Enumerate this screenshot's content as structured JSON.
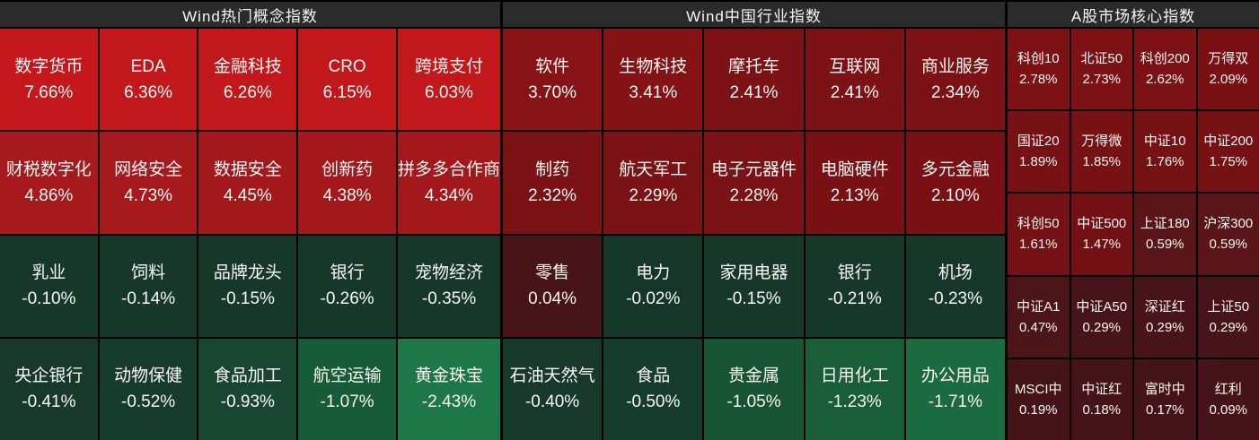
{
  "colors": {
    "background": "#000000",
    "header_background": "#2b2b2b",
    "header_text": "#f5f5f5",
    "cell_text": "#faf6f5",
    "gain_bright": "#c3181c",
    "gain_dark": "#7c1215",
    "flat_maroon": "#471518",
    "loss_dark": "#163829",
    "loss_bright": "#1e7746"
  },
  "chart_data": {
    "type": "heatmap",
    "unit": "%",
    "color_encoding": "red = gain, dark maroon = near zero, green = loss; brightness scales with magnitude",
    "sections": [
      {
        "title": "Wind热门概念指数",
        "columns": 5,
        "rows": 4,
        "cells": [
          {
            "label": "数字货币",
            "value": "7.66%",
            "change": 7.66,
            "color": "#c4181d"
          },
          {
            "label": "EDA",
            "value": "6.36%",
            "change": 6.36,
            "color": "#c2181c"
          },
          {
            "label": "金融科技",
            "value": "6.26%",
            "change": 6.26,
            "color": "#c2181c"
          },
          {
            "label": "CRO",
            "value": "6.15%",
            "change": 6.15,
            "color": "#c2181c"
          },
          {
            "label": "跨境支付",
            "value": "6.03%",
            "change": 6.03,
            "color": "#c2181c"
          },
          {
            "label": "财税数字化",
            "value": "4.86%",
            "change": 4.86,
            "color": "#a6191c"
          },
          {
            "label": "网络安全",
            "value": "4.73%",
            "change": 4.73,
            "color": "#a6191c"
          },
          {
            "label": "数据安全",
            "value": "4.45%",
            "change": 4.45,
            "color": "#a3181b"
          },
          {
            "label": "创新药",
            "value": "4.38%",
            "change": 4.38,
            "color": "#a3181b"
          },
          {
            "label": "拼多多合作商",
            "value": "4.34%",
            "change": 4.34,
            "color": "#a3181b"
          },
          {
            "label": "乳业",
            "value": "-0.10%",
            "change": -0.1,
            "color": "#163829"
          },
          {
            "label": "饲料",
            "value": "-0.14%",
            "change": -0.14,
            "color": "#163829"
          },
          {
            "label": "品牌龙头",
            "value": "-0.15%",
            "change": -0.15,
            "color": "#163829"
          },
          {
            "label": "银行",
            "value": "-0.26%",
            "change": -0.26,
            "color": "#163829"
          },
          {
            "label": "宠物经济",
            "value": "-0.35%",
            "change": -0.35,
            "color": "#163829"
          },
          {
            "label": "央企银行",
            "value": "-0.41%",
            "change": -0.41,
            "color": "#16392a"
          },
          {
            "label": "动物保健",
            "value": "-0.52%",
            "change": -0.52,
            "color": "#163d2c"
          },
          {
            "label": "食品加工",
            "value": "-0.93%",
            "change": -0.93,
            "color": "#174731"
          },
          {
            "label": "航空运输",
            "value": "-1.07%",
            "change": -1.07,
            "color": "#175c38"
          },
          {
            "label": "黄金珠宝",
            "value": "-2.43%",
            "change": -2.43,
            "color": "#1e7746"
          }
        ]
      },
      {
        "title": "Wind中国行业指数",
        "columns": 5,
        "rows": 4,
        "cells": [
          {
            "label": "软件",
            "value": "3.70%",
            "change": 3.7,
            "color": "#871316"
          },
          {
            "label": "生物科技",
            "value": "3.41%",
            "change": 3.41,
            "color": "#851316"
          },
          {
            "label": "摩托车",
            "value": "2.41%",
            "change": 2.41,
            "color": "#7c1215"
          },
          {
            "label": "互联网",
            "value": "2.41%",
            "change": 2.41,
            "color": "#7c1215"
          },
          {
            "label": "商业服务",
            "value": "2.34%",
            "change": 2.34,
            "color": "#7c1215"
          },
          {
            "label": "制药",
            "value": "2.32%",
            "change": 2.32,
            "color": "#7b1215"
          },
          {
            "label": "航天军工",
            "value": "2.29%",
            "change": 2.29,
            "color": "#7b1215"
          },
          {
            "label": "电子元器件",
            "value": "2.28%",
            "change": 2.28,
            "color": "#7b1215"
          },
          {
            "label": "电脑硬件",
            "value": "2.13%",
            "change": 2.13,
            "color": "#791114"
          },
          {
            "label": "多元金融",
            "value": "2.10%",
            "change": 2.1,
            "color": "#791114"
          },
          {
            "label": "零售",
            "value": "0.04%",
            "change": 0.04,
            "color": "#471518"
          },
          {
            "label": "电力",
            "value": "-0.02%",
            "change": -0.02,
            "color": "#15372a"
          },
          {
            "label": "家用电器",
            "value": "-0.15%",
            "change": -0.15,
            "color": "#163829"
          },
          {
            "label": "银行",
            "value": "-0.21%",
            "change": -0.21,
            "color": "#163829"
          },
          {
            "label": "机场",
            "value": "-0.23%",
            "change": -0.23,
            "color": "#163829"
          },
          {
            "label": "石油天然气",
            "value": "-0.40%",
            "change": -0.4,
            "color": "#16392a"
          },
          {
            "label": "食品",
            "value": "-0.50%",
            "change": -0.5,
            "color": "#163d2c"
          },
          {
            "label": "贵金属",
            "value": "-1.05%",
            "change": -1.05,
            "color": "#165433"
          },
          {
            "label": "日用化工",
            "value": "-1.23%",
            "change": -1.23,
            "color": "#175e39"
          },
          {
            "label": "办公用品",
            "value": "-1.71%",
            "change": -1.71,
            "color": "#1a6b40"
          }
        ]
      },
      {
        "title": "A股市场核心指数",
        "columns": 4,
        "rows": 5,
        "cells": [
          {
            "label": "科创10",
            "value": "2.78%",
            "change": 2.78,
            "color": "#7d1215"
          },
          {
            "label": "北证50",
            "value": "2.73%",
            "change": 2.73,
            "color": "#7d1215"
          },
          {
            "label": "科创200",
            "value": "2.62%",
            "change": 2.62,
            "color": "#7c1215"
          },
          {
            "label": "万得双",
            "value": "2.09%",
            "change": 2.09,
            "color": "#791114"
          },
          {
            "label": "国证20",
            "value": "1.89%",
            "change": 1.89,
            "color": "#771114"
          },
          {
            "label": "万得微",
            "value": "1.85%",
            "change": 1.85,
            "color": "#771114"
          },
          {
            "label": "中证10",
            "value": "1.76%",
            "change": 1.76,
            "color": "#761114"
          },
          {
            "label": "中证200",
            "value": "1.75%",
            "change": 1.75,
            "color": "#761114"
          },
          {
            "label": "科创50",
            "value": "1.61%",
            "change": 1.61,
            "color": "#741114"
          },
          {
            "label": "中证500",
            "value": "1.47%",
            "change": 1.47,
            "color": "#721013"
          },
          {
            "label": "上证180",
            "value": "0.59%",
            "change": 0.59,
            "color": "#5a1518"
          },
          {
            "label": "沪深300",
            "value": "0.59%",
            "change": 0.59,
            "color": "#5a1518"
          },
          {
            "label": "中证A1",
            "value": "0.47%",
            "change": 0.47,
            "color": "#4c1518"
          },
          {
            "label": "中证A50",
            "value": "0.29%",
            "change": 0.29,
            "color": "#471519"
          },
          {
            "label": "深证红",
            "value": "0.29%",
            "change": 0.29,
            "color": "#471519"
          },
          {
            "label": "上证50",
            "value": "0.29%",
            "change": 0.29,
            "color": "#471519"
          },
          {
            "label": "MSCI中",
            "value": "0.19%",
            "change": 0.19,
            "color": "#451418"
          },
          {
            "label": "中证红",
            "value": "0.18%",
            "change": 0.18,
            "color": "#451418"
          },
          {
            "label": "富时中",
            "value": "0.17%",
            "change": 0.17,
            "color": "#451418"
          },
          {
            "label": "红利",
            "value": "0.09%",
            "change": 0.09,
            "color": "#441419"
          }
        ]
      }
    ]
  }
}
